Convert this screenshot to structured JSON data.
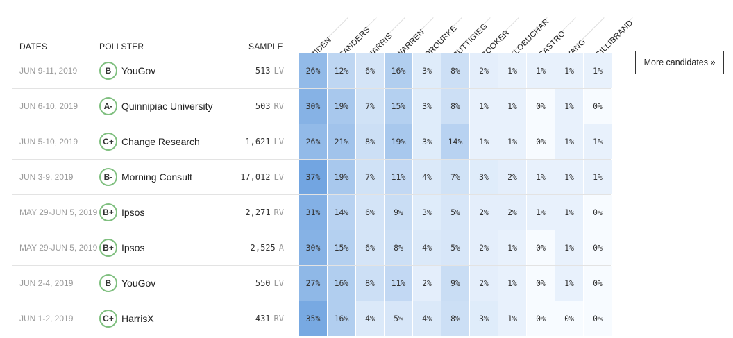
{
  "headers": {
    "dates": "DATES",
    "pollster": "POLLSTER",
    "sample": "SAMPLE"
  },
  "candidates": [
    "BIDEN",
    "SANDERS",
    "HARRIS",
    "WARREN",
    "OROURKE",
    "BUTTIGIEG",
    "BOOKER",
    "KLOBUCHAR",
    "CASTRO",
    "YANG",
    "GILLIBRAND"
  ],
  "more_button": "More candidates »",
  "colors": {
    "grade_ring": "#7fbf7f",
    "scale_max": "#6fa3e0"
  },
  "rows": [
    {
      "dates": "JUN 9-11, 2019",
      "grade": "B",
      "pollster": "YouGov",
      "sample": "513",
      "pop": "LV",
      "values": [
        26,
        12,
        6,
        16,
        3,
        8,
        2,
        1,
        1,
        1,
        1
      ]
    },
    {
      "dates": "JUN 6-10, 2019",
      "grade": "A-",
      "pollster": "Quinnipiac University",
      "sample": "503",
      "pop": "RV",
      "values": [
        30,
        19,
        7,
        15,
        3,
        8,
        1,
        1,
        0,
        1,
        0
      ]
    },
    {
      "dates": "JUN 5-10, 2019",
      "grade": "C+",
      "pollster": "Change Research",
      "sample": "1,621",
      "pop": "LV",
      "values": [
        26,
        21,
        8,
        19,
        3,
        14,
        1,
        1,
        0,
        1,
        1
      ]
    },
    {
      "dates": "JUN 3-9, 2019",
      "grade": "B-",
      "pollster": "Morning Consult",
      "sample": "17,012",
      "pop": "LV",
      "values": [
        37,
        19,
        7,
        11,
        4,
        7,
        3,
        2,
        1,
        1,
        1
      ]
    },
    {
      "dates": "MAY 29-JUN 5, 2019",
      "grade": "B+",
      "pollster": "Ipsos",
      "sample": "2,271",
      "pop": "RV",
      "values": [
        31,
        14,
        6,
        9,
        3,
        5,
        2,
        2,
        1,
        1,
        0
      ]
    },
    {
      "dates": "MAY 29-JUN 5, 2019",
      "grade": "B+",
      "pollster": "Ipsos",
      "sample": "2,525",
      "pop": "A",
      "values": [
        30,
        15,
        6,
        8,
        4,
        5,
        2,
        1,
        0,
        1,
        0
      ]
    },
    {
      "dates": "JUN 2-4, 2019",
      "grade": "B",
      "pollster": "YouGov",
      "sample": "550",
      "pop": "LV",
      "values": [
        27,
        16,
        8,
        11,
        2,
        9,
        2,
        1,
        0,
        1,
        0
      ]
    },
    {
      "dates": "JUN 1-2, 2019",
      "grade": "C+",
      "pollster": "HarrisX",
      "sample": "431",
      "pop": "RV",
      "values": [
        35,
        16,
        4,
        5,
        4,
        8,
        3,
        1,
        0,
        0,
        0
      ]
    }
  ]
}
